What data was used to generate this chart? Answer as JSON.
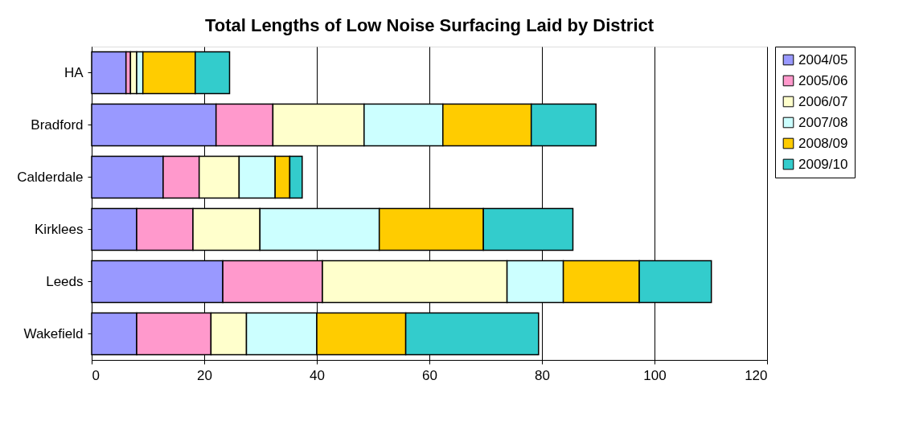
{
  "chart_data": {
    "type": "bar",
    "orientation": "horizontal",
    "stacked": true,
    "title": "Total Lengths of Low Noise Surfacing Laid by District",
    "categories": [
      "HA",
      "Bradford",
      "Calderdale",
      "Kirklees",
      "Leeds",
      "Wakefield"
    ],
    "series": [
      {
        "name": "2004/05",
        "color": "#9999ff",
        "values": [
          6.1,
          22.1,
          12.7,
          8.0,
          23.3,
          8.0
        ]
      },
      {
        "name": "2005/06",
        "color": "#ff99cc",
        "values": [
          0.8,
          10.1,
          6.4,
          10.0,
          17.7,
          13.2
        ]
      },
      {
        "name": "2006/07",
        "color": "#ffffcc",
        "values": [
          1.1,
          16.2,
          7.1,
          11.9,
          32.8,
          6.3
        ]
      },
      {
        "name": "2007/08",
        "color": "#ccffff",
        "values": [
          1.1,
          14.0,
          6.4,
          21.2,
          10.0,
          12.5
        ]
      },
      {
        "name": "2008/09",
        "color": "#ffcc00",
        "values": [
          9.3,
          15.7,
          2.6,
          18.5,
          13.5,
          15.8
        ]
      },
      {
        "name": "2009/10",
        "color": "#33cccc",
        "values": [
          6.1,
          11.5,
          2.2,
          15.9,
          12.8,
          23.6
        ]
      }
    ],
    "xlim": [
      0,
      120
    ],
    "xticks": [
      0,
      20,
      40,
      60,
      80,
      100,
      120
    ],
    "grid": "x",
    "legend": "right"
  }
}
